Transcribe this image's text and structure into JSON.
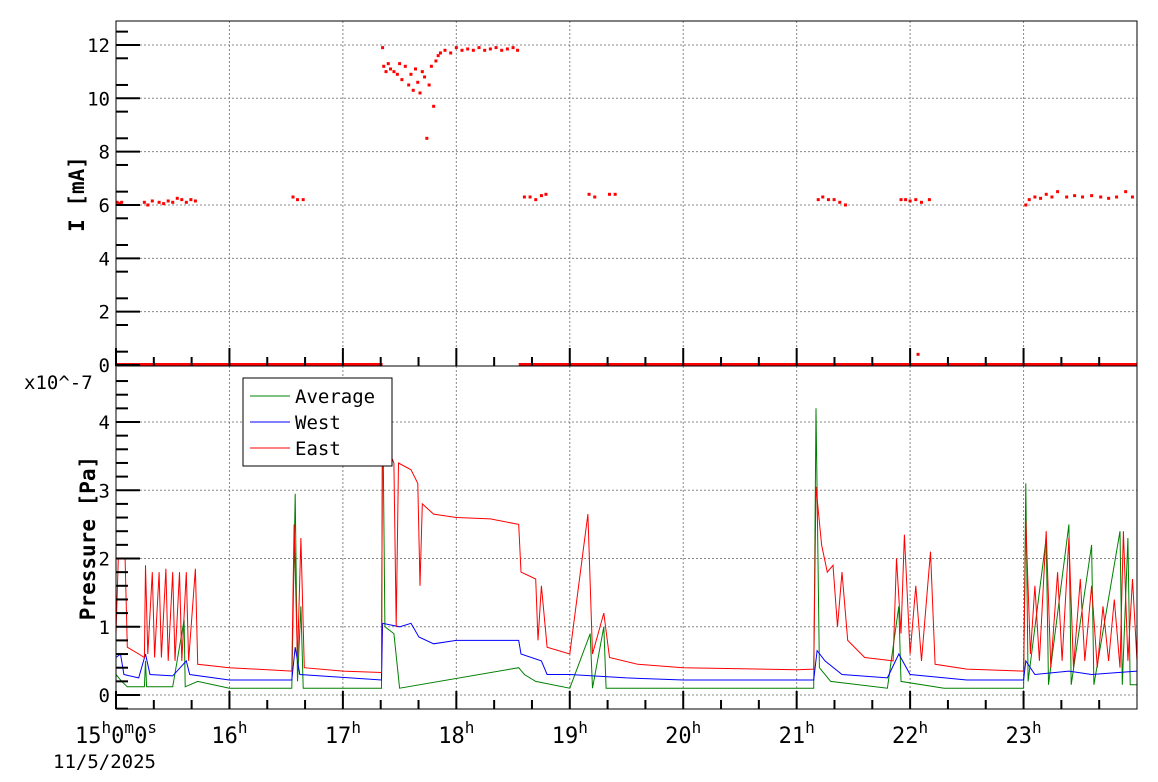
{
  "chart_data": [
    {
      "type": "scatter",
      "ylabel": "I [mA]",
      "xlim": [
        "15:00",
        "24:00"
      ],
      "ylim": [
        0,
        13
      ],
      "yticks": [
        "0",
        "2",
        "4",
        "6",
        "8",
        "10",
        "12"
      ],
      "grid": true,
      "color": "#ff0000",
      "zero_ranges_h": [
        [
          15.0,
          17.35
        ],
        [
          18.55,
          24.0
        ]
      ],
      "points": [
        [
          15.01,
          6.1
        ],
        [
          15.03,
          6.05
        ],
        [
          15.05,
          6.1
        ],
        [
          15.25,
          6.1
        ],
        [
          15.28,
          6.0
        ],
        [
          15.32,
          6.15
        ],
        [
          15.38,
          6.1
        ],
        [
          15.42,
          6.05
        ],
        [
          15.46,
          6.15
        ],
        [
          15.5,
          6.1
        ],
        [
          15.54,
          6.25
        ],
        [
          15.58,
          6.2
        ],
        [
          15.62,
          6.1
        ],
        [
          15.66,
          6.2
        ],
        [
          15.7,
          6.15
        ],
        [
          16.56,
          6.3
        ],
        [
          16.6,
          6.2
        ],
        [
          16.65,
          6.2
        ],
        [
          17.35,
          11.9
        ],
        [
          17.36,
          11.2
        ],
        [
          17.38,
          11.0
        ],
        [
          17.4,
          11.3
        ],
        [
          17.42,
          11.1
        ],
        [
          17.45,
          11.0
        ],
        [
          17.48,
          10.9
        ],
        [
          17.5,
          11.3
        ],
        [
          17.52,
          10.7
        ],
        [
          17.55,
          11.2
        ],
        [
          17.58,
          10.5
        ],
        [
          17.6,
          10.9
        ],
        [
          17.62,
          10.3
        ],
        [
          17.64,
          11.1
        ],
        [
          17.66,
          10.6
        ],
        [
          17.68,
          10.2
        ],
        [
          17.7,
          11.0
        ],
        [
          17.72,
          10.8
        ],
        [
          17.74,
          8.5
        ],
        [
          17.76,
          10.5
        ],
        [
          17.78,
          11.2
        ],
        [
          17.8,
          9.7
        ],
        [
          17.82,
          11.4
        ],
        [
          17.84,
          11.6
        ],
        [
          17.86,
          11.7
        ],
        [
          17.9,
          11.8
        ],
        [
          17.95,
          11.7
        ],
        [
          18.0,
          11.9
        ],
        [
          18.05,
          11.8
        ],
        [
          18.1,
          11.85
        ],
        [
          18.15,
          11.8
        ],
        [
          18.2,
          11.9
        ],
        [
          18.25,
          11.8
        ],
        [
          18.3,
          11.85
        ],
        [
          18.35,
          11.9
        ],
        [
          18.4,
          11.8
        ],
        [
          18.45,
          11.85
        ],
        [
          18.5,
          11.9
        ],
        [
          18.54,
          11.8
        ],
        [
          18.6,
          6.3
        ],
        [
          18.65,
          6.3
        ],
        [
          18.7,
          6.2
        ],
        [
          18.75,
          6.35
        ],
        [
          18.79,
          6.4
        ],
        [
          19.17,
          6.4
        ],
        [
          19.22,
          6.3
        ],
        [
          19.35,
          6.4
        ],
        [
          19.4,
          6.4
        ],
        [
          21.19,
          6.2
        ],
        [
          21.23,
          6.3
        ],
        [
          21.28,
          6.2
        ],
        [
          21.33,
          6.2
        ],
        [
          21.38,
          6.1
        ],
        [
          21.43,
          6.0
        ],
        [
          21.92,
          6.2
        ],
        [
          21.96,
          6.2
        ],
        [
          22.0,
          6.15
        ],
        [
          22.05,
          6.2
        ],
        [
          22.1,
          6.1
        ],
        [
          22.17,
          6.2
        ],
        [
          22.07,
          0.4
        ],
        [
          23.02,
          6.0
        ],
        [
          23.05,
          6.2
        ],
        [
          23.1,
          6.3
        ],
        [
          23.15,
          6.25
        ],
        [
          23.2,
          6.4
        ],
        [
          23.25,
          6.3
        ],
        [
          23.3,
          6.5
        ],
        [
          23.38,
          6.3
        ],
        [
          23.45,
          6.35
        ],
        [
          23.52,
          6.3
        ],
        [
          23.6,
          6.35
        ],
        [
          23.68,
          6.3
        ],
        [
          23.75,
          6.25
        ],
        [
          23.82,
          6.3
        ],
        [
          23.9,
          6.5
        ],
        [
          23.96,
          6.3
        ]
      ]
    },
    {
      "type": "line",
      "ylabel": "Pressure [Pa]",
      "yexponent": "x10^-7",
      "ylim": [
        -0.2,
        4.65
      ],
      "yticks": [
        "0",
        "1",
        "2",
        "3",
        "4"
      ],
      "xlim": [
        "15:00",
        "24:00"
      ],
      "xticks": [
        "15h0m0s",
        "16h",
        "17h",
        "18h",
        "19h",
        "20h",
        "21h",
        "22h",
        "23h"
      ],
      "date": "11/5/2025",
      "grid": true,
      "legend": "top-left",
      "series": [
        {
          "name": "Average",
          "color": "#008000",
          "points": [
            [
              15.0,
              0.3
            ],
            [
              15.05,
              0.2
            ],
            [
              15.1,
              0.12
            ],
            [
              15.25,
              0.12
            ],
            [
              15.26,
              0.5
            ],
            [
              15.27,
              0.12
            ],
            [
              15.5,
              0.12
            ],
            [
              15.6,
              1.1
            ],
            [
              15.61,
              0.12
            ],
            [
              15.72,
              0.2
            ],
            [
              16.0,
              0.1
            ],
            [
              16.55,
              0.1
            ],
            [
              16.58,
              2.95
            ],
            [
              16.6,
              0.2
            ],
            [
              16.63,
              1.3
            ],
            [
              16.65,
              0.1
            ],
            [
              17.34,
              0.1
            ],
            [
              17.35,
              4.5
            ],
            [
              17.37,
              1.0
            ],
            [
              17.45,
              0.9
            ],
            [
              17.5,
              0.1
            ],
            [
              18.55,
              0.4
            ],
            [
              18.6,
              0.3
            ],
            [
              18.7,
              0.2
            ],
            [
              19.0,
              0.1
            ],
            [
              19.18,
              0.9
            ],
            [
              19.2,
              0.1
            ],
            [
              19.3,
              1.0
            ],
            [
              19.32,
              0.1
            ],
            [
              21.15,
              0.1
            ],
            [
              21.17,
              4.2
            ],
            [
              21.2,
              0.4
            ],
            [
              21.3,
              0.2
            ],
            [
              21.8,
              0.1
            ],
            [
              21.9,
              1.3
            ],
            [
              21.92,
              0.2
            ],
            [
              22.3,
              0.1
            ],
            [
              23.0,
              0.1
            ],
            [
              23.02,
              3.1
            ],
            [
              23.04,
              0.2
            ],
            [
              23.2,
              2.3
            ],
            [
              23.22,
              0.15
            ],
            [
              23.4,
              2.5
            ],
            [
              23.42,
              0.15
            ],
            [
              23.6,
              2.2
            ],
            [
              23.62,
              0.15
            ],
            [
              23.85,
              2.4
            ],
            [
              23.87,
              0.15
            ],
            [
              23.92,
              2.3
            ],
            [
              23.94,
              0.15
            ],
            [
              24.0,
              0.15
            ]
          ]
        },
        {
          "name": "West",
          "color": "#0000ff",
          "points": [
            [
              15.0,
              0.55
            ],
            [
              15.04,
              0.6
            ],
            [
              15.07,
              0.3
            ],
            [
              15.2,
              0.25
            ],
            [
              15.26,
              0.6
            ],
            [
              15.3,
              0.3
            ],
            [
              15.5,
              0.28
            ],
            [
              15.62,
              0.5
            ],
            [
              15.65,
              0.3
            ],
            [
              16.0,
              0.22
            ],
            [
              16.55,
              0.22
            ],
            [
              16.58,
              0.7
            ],
            [
              16.62,
              0.3
            ],
            [
              17.34,
              0.22
            ],
            [
              17.35,
              1.05
            ],
            [
              17.5,
              1.0
            ],
            [
              17.6,
              1.05
            ],
            [
              17.67,
              0.85
            ],
            [
              17.8,
              0.75
            ],
            [
              18.0,
              0.8
            ],
            [
              18.3,
              0.8
            ],
            [
              18.55,
              0.8
            ],
            [
              18.57,
              0.6
            ],
            [
              18.75,
              0.5
            ],
            [
              18.8,
              0.3
            ],
            [
              19.0,
              0.3
            ],
            [
              19.5,
              0.25
            ],
            [
              20.0,
              0.22
            ],
            [
              21.15,
              0.22
            ],
            [
              21.18,
              0.65
            ],
            [
              21.25,
              0.5
            ],
            [
              21.4,
              0.3
            ],
            [
              21.8,
              0.25
            ],
            [
              21.9,
              0.6
            ],
            [
              22.0,
              0.3
            ],
            [
              22.5,
              0.22
            ],
            [
              23.0,
              0.22
            ],
            [
              23.02,
              0.5
            ],
            [
              23.1,
              0.3
            ],
            [
              23.4,
              0.35
            ],
            [
              23.6,
              0.3
            ],
            [
              24.0,
              0.35
            ]
          ]
        },
        {
          "name": "East",
          "color": "#ff0000",
          "points": [
            [
              15.0,
              0.9
            ],
            [
              15.02,
              2.0
            ],
            [
              15.08,
              2.0
            ],
            [
              15.1,
              0.7
            ],
            [
              15.2,
              0.6
            ],
            [
              15.25,
              0.55
            ],
            [
              15.26,
              1.9
            ],
            [
              15.28,
              0.6
            ],
            [
              15.32,
              1.8
            ],
            [
              15.34,
              0.55
            ],
            [
              15.38,
              1.8
            ],
            [
              15.4,
              0.55
            ],
            [
              15.44,
              1.85
            ],
            [
              15.46,
              0.5
            ],
            [
              15.5,
              1.8
            ],
            [
              15.52,
              0.5
            ],
            [
              15.56,
              1.8
            ],
            [
              15.58,
              0.5
            ],
            [
              15.62,
              1.8
            ],
            [
              15.64,
              0.5
            ],
            [
              15.7,
              1.85
            ],
            [
              15.72,
              0.45
            ],
            [
              16.0,
              0.4
            ],
            [
              16.55,
              0.35
            ],
            [
              16.57,
              2.5
            ],
            [
              16.6,
              0.5
            ],
            [
              16.63,
              2.3
            ],
            [
              16.66,
              0.4
            ],
            [
              17.0,
              0.35
            ],
            [
              17.34,
              0.33
            ],
            [
              17.35,
              4.4
            ],
            [
              17.4,
              3.6
            ],
            [
              17.45,
              3.4
            ],
            [
              17.47,
              1.0
            ],
            [
              17.49,
              3.4
            ],
            [
              17.6,
              3.3
            ],
            [
              17.66,
              3.1
            ],
            [
              17.68,
              1.6
            ],
            [
              17.7,
              2.8
            ],
            [
              17.8,
              2.65
            ],
            [
              18.0,
              2.6
            ],
            [
              18.3,
              2.58
            ],
            [
              18.55,
              2.5
            ],
            [
              18.57,
              1.8
            ],
            [
              18.7,
              1.7
            ],
            [
              18.72,
              0.8
            ],
            [
              18.75,
              1.6
            ],
            [
              18.8,
              0.7
            ],
            [
              19.0,
              0.6
            ],
            [
              19.16,
              2.65
            ],
            [
              19.2,
              0.6
            ],
            [
              19.3,
              1.2
            ],
            [
              19.35,
              0.55
            ],
            [
              19.6,
              0.45
            ],
            [
              20.0,
              0.4
            ],
            [
              21.0,
              0.37
            ],
            [
              21.15,
              0.38
            ],
            [
              21.17,
              3.05
            ],
            [
              21.22,
              2.2
            ],
            [
              21.27,
              1.8
            ],
            [
              21.32,
              1.9
            ],
            [
              21.36,
              1.0
            ],
            [
              21.4,
              1.8
            ],
            [
              21.45,
              0.8
            ],
            [
              21.6,
              0.55
            ],
            [
              21.85,
              0.5
            ],
            [
              21.88,
              2.0
            ],
            [
              21.92,
              0.9
            ],
            [
              21.95,
              2.35
            ],
            [
              22.0,
              0.6
            ],
            [
              22.05,
              1.6
            ],
            [
              22.1,
              0.5
            ],
            [
              22.18,
              2.1
            ],
            [
              22.22,
              0.45
            ],
            [
              22.5,
              0.38
            ],
            [
              23.0,
              0.35
            ],
            [
              23.02,
              2.55
            ],
            [
              23.06,
              0.6
            ],
            [
              23.1,
              1.6
            ],
            [
              23.14,
              0.5
            ],
            [
              23.2,
              2.4
            ],
            [
              23.24,
              0.4
            ],
            [
              23.3,
              1.8
            ],
            [
              23.34,
              0.5
            ],
            [
              23.4,
              2.3
            ],
            [
              23.44,
              0.4
            ],
            [
              23.5,
              1.7
            ],
            [
              23.54,
              0.5
            ],
            [
              23.6,
              1.6
            ],
            [
              23.65,
              0.4
            ],
            [
              23.7,
              1.3
            ],
            [
              23.75,
              0.5
            ],
            [
              23.8,
              1.4
            ],
            [
              23.85,
              0.4
            ],
            [
              23.88,
              2.4
            ],
            [
              23.92,
              0.5
            ],
            [
              23.96,
              1.7
            ],
            [
              24.0,
              0.5
            ]
          ]
        }
      ]
    }
  ]
}
